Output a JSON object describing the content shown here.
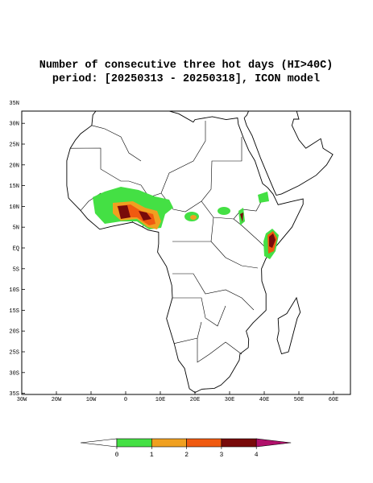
{
  "header": {
    "title_line1": "Number of consecutive three hot days (HI>40C)",
    "title_line2": "period: [20250313 - 20250318], ICON model"
  },
  "map": {
    "lon_ticks": [
      {
        "value": -30,
        "label": "30W"
      },
      {
        "value": -20,
        "label": "20W"
      },
      {
        "value": -10,
        "label": "10W"
      },
      0,
      {
        "value": 10,
        "label": "10E"
      },
      {
        "value": 20,
        "label": "20E"
      },
      {
        "value": 30,
        "label": "30E"
      },
      {
        "value": 40,
        "label": "40E"
      },
      {
        "value": 50,
        "label": "50E"
      },
      {
        "value": 60,
        "label": "60E"
      }
    ],
    "lat_ticks": [
      {
        "value": 35,
        "label": "35N"
      },
      {
        "value": 30,
        "label": "30N"
      },
      {
        "value": 25,
        "label": "25N"
      },
      {
        "value": 20,
        "label": "20N"
      },
      {
        "value": 15,
        "label": "15N"
      },
      {
        "value": 10,
        "label": "10N"
      },
      {
        "value": 5,
        "label": "5N"
      },
      {
        "value": 0,
        "label": "EQ"
      },
      {
        "value": -5,
        "label": "5S"
      },
      {
        "value": -10,
        "label": "10S"
      },
      {
        "value": -15,
        "label": "15S"
      },
      {
        "value": -20,
        "label": "20S"
      },
      {
        "value": -25,
        "label": "25S"
      },
      {
        "value": -30,
        "label": "30S"
      },
      {
        "value": -35,
        "label": "35S"
      }
    ]
  },
  "colorbar": {
    "levels": [
      0,
      1,
      2,
      3,
      4
    ],
    "colors": [
      "#ffffff",
      "#44e044",
      "#f0a020",
      "#f05a10",
      "#780a0a",
      "#b0106a"
    ]
  }
}
